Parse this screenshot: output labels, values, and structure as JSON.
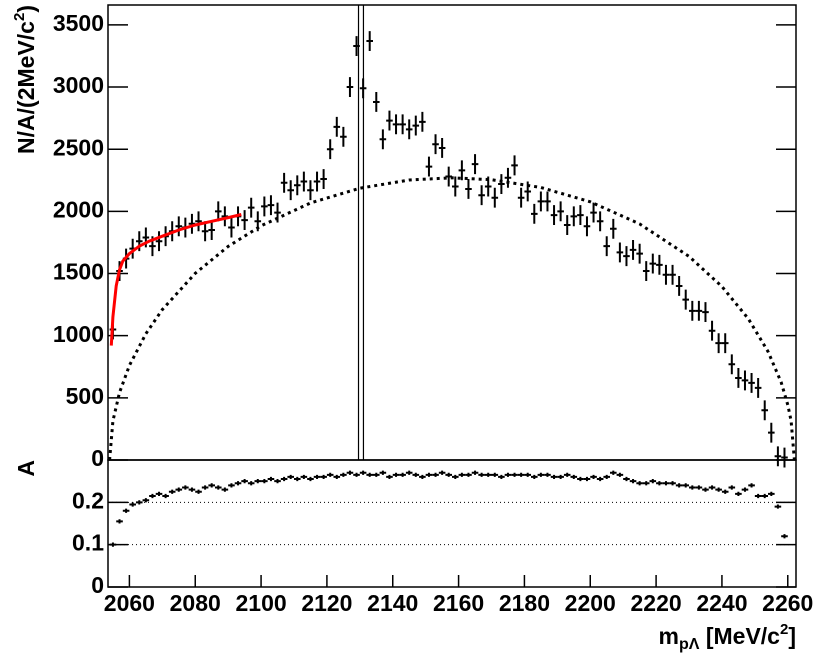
{
  "chart_data": [
    {
      "type": "errorbar",
      "ylabel": {
        "main": "N/A/(2MeV/c",
        "sup": "2",
        "end": ")"
      },
      "xlim": [
        2053.5,
        2262.5
      ],
      "ylim": [
        0,
        3660
      ],
      "yticks": [
        0,
        500,
        1000,
        1500,
        2000,
        2500,
        3000,
        3500
      ],
      "vlines": [
        2129.6,
        2131.1
      ],
      "series": [
        {
          "type": "errorbar",
          "color": "#000000",
          "error": 80,
          "x": [
            2055,
            2057,
            2059,
            2061,
            2063,
            2065,
            2067,
            2069,
            2071,
            2073,
            2075,
            2077,
            2079,
            2081,
            2083,
            2085,
            2087,
            2089,
            2091,
            2093,
            2095,
            2097,
            2099,
            2101,
            2103,
            2105,
            2107,
            2109,
            2111,
            2113,
            2115,
            2117,
            2119,
            2121,
            2123,
            2125,
            2127,
            2129,
            2131,
            2133,
            2135,
            2137,
            2139,
            2141,
            2143,
            2145,
            2147,
            2149,
            2151,
            2153,
            2155,
            2157,
            2159,
            2161,
            2163,
            2165,
            2167,
            2169,
            2171,
            2173,
            2175,
            2177,
            2179,
            2181,
            2183,
            2185,
            2187,
            2189,
            2191,
            2193,
            2195,
            2197,
            2199,
            2201,
            2203,
            2205,
            2207,
            2209,
            2211,
            2213,
            2215,
            2217,
            2219,
            2221,
            2223,
            2225,
            2227,
            2229,
            2231,
            2233,
            2235,
            2237,
            2239,
            2241,
            2243,
            2245,
            2247,
            2249,
            2251,
            2253,
            2255,
            2257,
            2259
          ],
          "values": [
            1050,
            1520,
            1620,
            1700,
            1760,
            1790,
            1720,
            1760,
            1800,
            1840,
            1880,
            1870,
            1900,
            1920,
            1840,
            1850,
            2000,
            1960,
            1870,
            1960,
            1930,
            2030,
            1920,
            2040,
            2050,
            1990,
            2230,
            2170,
            2210,
            2240,
            2170,
            2240,
            2260,
            2500,
            2680,
            2600,
            3000,
            3330,
            2990,
            3370,
            2880,
            2580,
            2730,
            2700,
            2700,
            2660,
            2690,
            2720,
            2360,
            2540,
            2510,
            2280,
            2200,
            2330,
            2180,
            2380,
            2130,
            2200,
            2110,
            2220,
            2270,
            2370,
            2110,
            2160,
            1980,
            2080,
            2080,
            1970,
            2000,
            1890,
            1960,
            1970,
            1880,
            1990,
            1920,
            1720,
            1860,
            1670,
            1640,
            1690,
            1660,
            1520,
            1580,
            1570,
            1490,
            1490,
            1400,
            1290,
            1200,
            1200,
            1190,
            1040,
            940,
            940,
            770,
            660,
            640,
            620,
            580,
            400,
            220,
            30,
            20
          ]
        },
        {
          "type": "line",
          "color": "#ff0000",
          "x": [
            2054.5,
            2055,
            2056,
            2057,
            2058,
            2060,
            2063,
            2066,
            2070,
            2075,
            2080,
            2085,
            2090,
            2094
          ],
          "values": [
            920,
            1150,
            1400,
            1530,
            1600,
            1660,
            1720,
            1760,
            1800,
            1850,
            1890,
            1920,
            1950,
            1975
          ]
        },
        {
          "type": "line",
          "style": "dotted",
          "color": "#000000",
          "x": [
            2054,
            2055,
            2057,
            2060,
            2065,
            2070,
            2080,
            2090,
            2100,
            2115,
            2130,
            2145,
            2158,
            2170,
            2185,
            2200,
            2215,
            2230,
            2240,
            2248,
            2254,
            2258,
            2260,
            2261,
            2262
          ],
          "values": [
            0,
            314,
            542,
            760,
            1016,
            1210,
            1501,
            1718,
            1884,
            2067,
            2186,
            2252,
            2270,
            2255,
            2192,
            2077,
            1899,
            1638,
            1396,
            1137,
            873,
            624,
            443,
            315,
            0
          ]
        }
      ]
    },
    {
      "type": "errorbar",
      "ylabel": "A",
      "xlabel": {
        "main": "m",
        "sub": "pΛ",
        "rest": " [MeV/c",
        "sup": "2",
        "end": "]"
      },
      "xlim": [
        2053.5,
        2262.5
      ],
      "ylim": [
        0,
        0.3
      ],
      "xticks": [
        2060,
        2080,
        2100,
        2120,
        2140,
        2160,
        2180,
        2200,
        2220,
        2240,
        2260
      ],
      "yticks": [
        0,
        0.1,
        0.2
      ],
      "hlines": [
        0.1,
        0.2
      ],
      "series": [
        {
          "type": "errorbar",
          "color": "#000000",
          "error": 0.005,
          "x": [
            2055,
            2057,
            2059,
            2061,
            2063,
            2065,
            2067,
            2069,
            2071,
            2073,
            2075,
            2077,
            2079,
            2081,
            2083,
            2085,
            2087,
            2089,
            2091,
            2093,
            2095,
            2097,
            2099,
            2101,
            2103,
            2105,
            2107,
            2109,
            2111,
            2113,
            2115,
            2117,
            2119,
            2121,
            2123,
            2125,
            2127,
            2129,
            2131,
            2133,
            2135,
            2137,
            2139,
            2141,
            2143,
            2145,
            2147,
            2149,
            2151,
            2153,
            2155,
            2157,
            2159,
            2161,
            2163,
            2165,
            2167,
            2169,
            2171,
            2173,
            2175,
            2177,
            2179,
            2181,
            2183,
            2185,
            2187,
            2189,
            2191,
            2193,
            2195,
            2197,
            2199,
            2201,
            2203,
            2205,
            2207,
            2209,
            2211,
            2213,
            2215,
            2217,
            2219,
            2221,
            2223,
            2225,
            2227,
            2229,
            2231,
            2233,
            2235,
            2237,
            2239,
            2241,
            2243,
            2245,
            2247,
            2249,
            2251,
            2253,
            2255,
            2257,
            2259
          ],
          "values": [
            0.1,
            0.155,
            0.18,
            0.195,
            0.2,
            0.205,
            0.215,
            0.22,
            0.215,
            0.225,
            0.23,
            0.235,
            0.23,
            0.225,
            0.235,
            0.24,
            0.235,
            0.23,
            0.24,
            0.245,
            0.25,
            0.245,
            0.25,
            0.25,
            0.255,
            0.25,
            0.255,
            0.26,
            0.255,
            0.26,
            0.255,
            0.26,
            0.26,
            0.265,
            0.26,
            0.265,
            0.27,
            0.265,
            0.27,
            0.265,
            0.265,
            0.27,
            0.26,
            0.265,
            0.265,
            0.27,
            0.265,
            0.26,
            0.265,
            0.265,
            0.27,
            0.265,
            0.26,
            0.265,
            0.265,
            0.27,
            0.265,
            0.265,
            0.265,
            0.26,
            0.265,
            0.265,
            0.265,
            0.265,
            0.26,
            0.265,
            0.265,
            0.26,
            0.26,
            0.265,
            0.26,
            0.255,
            0.255,
            0.26,
            0.255,
            0.26,
            0.27,
            0.265,
            0.255,
            0.25,
            0.245,
            0.245,
            0.25,
            0.245,
            0.245,
            0.245,
            0.24,
            0.24,
            0.235,
            0.235,
            0.23,
            0.235,
            0.23,
            0.225,
            0.235,
            0.22,
            0.23,
            0.24,
            0.215,
            0.215,
            0.22,
            0.19,
            0.12
          ]
        }
      ]
    }
  ]
}
